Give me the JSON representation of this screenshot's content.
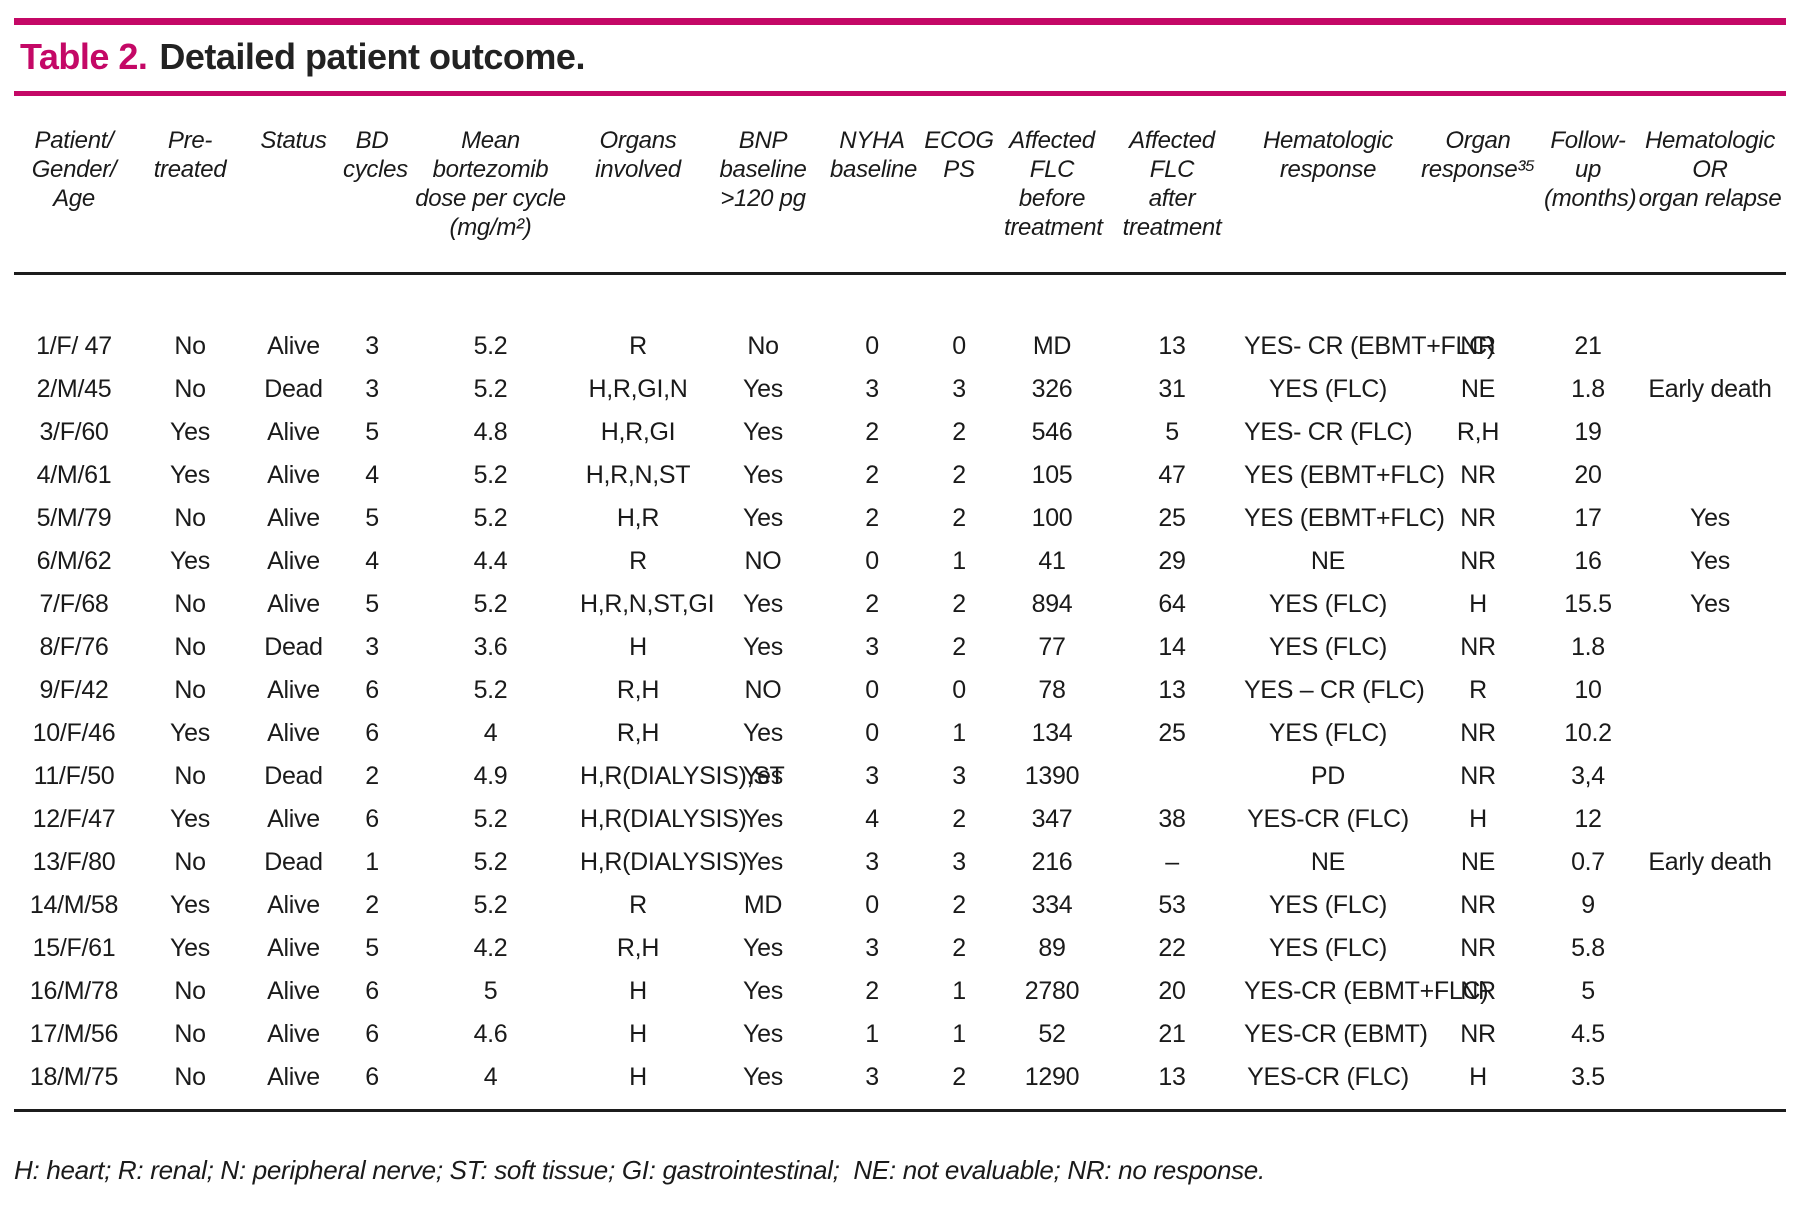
{
  "title": {
    "label": "Table 2.",
    "caption": "Detailed patient outcome."
  },
  "colors": {
    "accent": "#c40866",
    "text": "#1a1a1a",
    "rule": "#1c1c1c"
  },
  "table": {
    "columns": [
      "Patient/\nGender/\nAge",
      "Pre-\ntreated",
      "Status",
      "BD\ncycles",
      "Mean\nbortezomib\ndose  per cycle\n(mg/m²)",
      "Organs\ninvolved",
      "BNP\nbaseline\n>120 pg",
      "NYHA\nbaseline",
      "ECOG\nPS",
      "Affected\nFLC\nbefore\ntreatment",
      "Affected\nFLC\nafter\ntreatment",
      "Hematologic\nresponse",
      "Organ\nresponse³⁵",
      "Follow-up\n(months)",
      "Hematologic\nOR\norgan relapse"
    ],
    "rows": [
      [
        "1/F/ 47",
        "No",
        "Alive",
        "3",
        "5.2",
        "R",
        "No",
        "0",
        "0",
        "MD",
        "13",
        "YES- CR (EBMT+FLC)",
        "NR",
        "21",
        ""
      ],
      [
        "2/M/45",
        "No",
        "Dead",
        "3",
        "5.2",
        "H,R,GI,N",
        "Yes",
        "3",
        "3",
        "326",
        "31",
        "YES (FLC)",
        "NE",
        "1.8",
        "Early death"
      ],
      [
        "3/F/60",
        "Yes",
        "Alive",
        "5",
        "4.8",
        "H,R,GI",
        "Yes",
        "2",
        "2",
        "546",
        "5",
        "YES- CR (FLC)",
        "R,H",
        "19",
        ""
      ],
      [
        "4/M/61",
        "Yes",
        "Alive",
        "4",
        "5.2",
        "H,R,N,ST",
        "Yes",
        "2",
        "2",
        "105",
        "47",
        "YES (EBMT+FLC)",
        "NR",
        "20",
        ""
      ],
      [
        "5/M/79",
        "No",
        "Alive",
        "5",
        "5.2",
        "H,R",
        "Yes",
        "2",
        "2",
        "100",
        "25",
        "YES (EBMT+FLC)",
        "NR",
        "17",
        "Yes"
      ],
      [
        "6/M/62",
        "Yes",
        "Alive",
        "4",
        "4.4",
        "R",
        "NO",
        "0",
        "1",
        "41",
        "29",
        "NE",
        "NR",
        "16",
        "Yes"
      ],
      [
        "7/F/68",
        "No",
        "Alive",
        "5",
        "5.2",
        "H,R,N,ST,GI",
        "Yes",
        "2",
        "2",
        "894",
        "64",
        "YES (FLC)",
        "H",
        "15.5",
        "Yes"
      ],
      [
        "8/F/76",
        "No",
        "Dead",
        "3",
        "3.6",
        "H",
        "Yes",
        "3",
        "2",
        "77",
        "14",
        "YES (FLC)",
        "NR",
        "1.8",
        ""
      ],
      [
        "9/F/42",
        "No",
        "Alive",
        "6",
        "5.2",
        "R,H",
        "NO",
        "0",
        "0",
        "78",
        "13",
        "YES – CR (FLC)",
        "R",
        "10",
        ""
      ],
      [
        "10/F/46",
        "Yes",
        "Alive",
        "6",
        "4",
        "R,H",
        "Yes",
        "0",
        "1",
        "134",
        "25",
        "YES (FLC)",
        "NR",
        "10.2",
        ""
      ],
      [
        "11/F/50",
        "No",
        "Dead",
        "2",
        "4.9",
        "H,R(DIALYSIS),ST",
        "Yes",
        "3",
        "3",
        "1390",
        "",
        "PD",
        "NR",
        "3,4",
        ""
      ],
      [
        "12/F/47",
        "Yes",
        "Alive",
        "6",
        "5.2",
        "H,R(DIALYSIS)",
        "Yes",
        "4",
        "2",
        "347",
        "38",
        "YES-CR (FLC)",
        "H",
        "12",
        ""
      ],
      [
        "13/F/80",
        "No",
        "Dead",
        "1",
        "5.2",
        "H,R(DIALYSIS)",
        "Yes",
        "3",
        "3",
        "216",
        "–",
        "NE",
        "NE",
        "0.7",
        "Early death"
      ],
      [
        "14/M/58",
        "Yes",
        "Alive",
        "2",
        "5.2",
        "R",
        "MD",
        "0",
        "2",
        "334",
        "53",
        "YES (FLC)",
        "NR",
        "9",
        ""
      ],
      [
        "15/F/61",
        "Yes",
        "Alive",
        "5",
        "4.2",
        "R,H",
        "Yes",
        "3",
        "2",
        "89",
        "22",
        "YES (FLC)",
        "NR",
        "5.8",
        ""
      ],
      [
        "16/M/78",
        "No",
        "Alive",
        "6",
        "5",
        "H",
        "Yes",
        "2",
        "1",
        "2780",
        "20",
        "YES-CR (EBMT+FLC)",
        "NR",
        "5",
        ""
      ],
      [
        "17/M/56",
        "No",
        "Alive",
        "6",
        "4.6",
        "H",
        "Yes",
        "1",
        "1",
        "52",
        "21",
        "YES-CR (EBMT)",
        "NR",
        "4.5",
        ""
      ],
      [
        "18/M/75",
        "No",
        "Alive",
        "6",
        "4",
        "H",
        "Yes",
        "3",
        "2",
        "1290",
        "13",
        "YES-CR (FLC)",
        "H",
        "3.5",
        ""
      ]
    ]
  },
  "footnote": {
    "text": "H: heart; R: renal; N: peripheral nerve; ST: soft tissue; GI: gastrointestinal;  NE: not evaluable; NR: no response."
  }
}
